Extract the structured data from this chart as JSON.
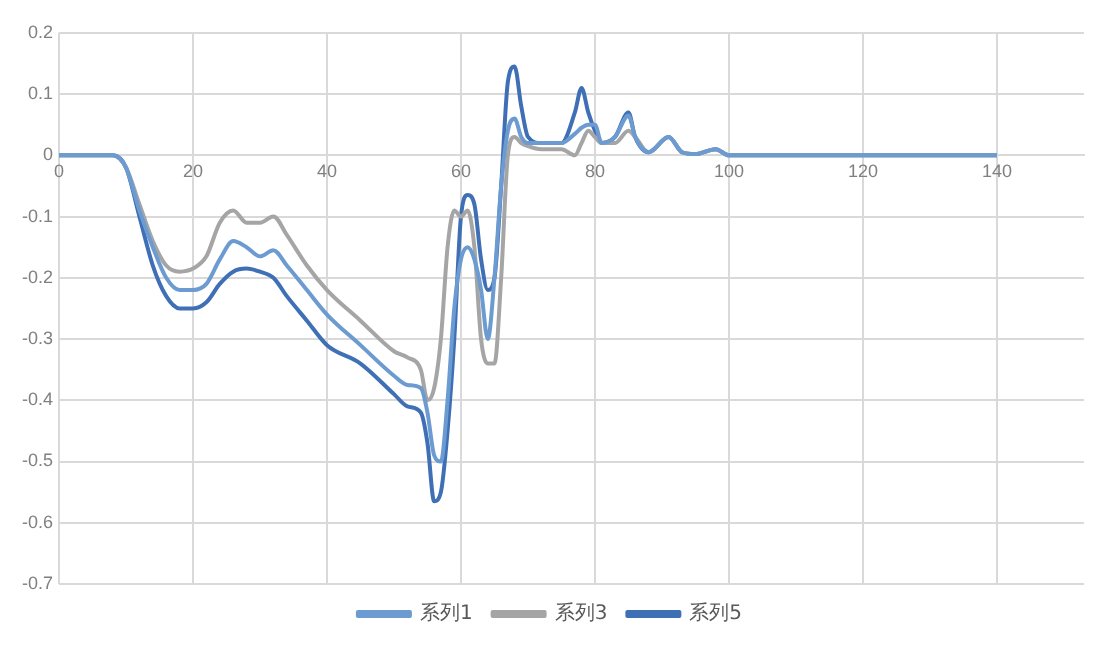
{
  "chart_data": {
    "type": "line",
    "x": [
      0,
      8,
      10,
      12,
      14,
      16,
      18,
      20,
      22,
      24,
      26,
      28,
      30,
      32,
      34,
      37,
      40,
      45,
      50,
      52,
      54,
      55,
      56,
      57,
      58,
      59,
      60,
      61,
      62,
      63,
      64,
      65,
      66,
      67,
      68,
      69,
      70,
      72,
      75,
      77,
      78,
      79,
      80,
      81,
      83,
      85,
      86,
      88,
      91,
      93,
      95,
      98,
      100,
      120,
      140
    ],
    "series": [
      {
        "name": "系列1",
        "color": "#6b9bd1",
        "values": [
          0,
          0,
          -0.02,
          -0.09,
          -0.15,
          -0.2,
          -0.22,
          -0.22,
          -0.21,
          -0.17,
          -0.14,
          -0.15,
          -0.165,
          -0.155,
          -0.18,
          -0.22,
          -0.26,
          -0.31,
          -0.36,
          -0.375,
          -0.38,
          -0.42,
          -0.49,
          -0.5,
          -0.4,
          -0.25,
          -0.17,
          -0.15,
          -0.17,
          -0.22,
          -0.3,
          -0.2,
          -0.05,
          0.04,
          0.06,
          0.03,
          0.02,
          0.02,
          0.02,
          0.035,
          0.045,
          0.05,
          0.05,
          0.02,
          0.03,
          0.065,
          0.03,
          0.005,
          0.03,
          0.005,
          0.002,
          0.01,
          0,
          0,
          0
        ]
      },
      {
        "name": "系列3",
        "color": "#a5a5a5",
        "values": [
          0,
          0,
          -0.02,
          -0.08,
          -0.14,
          -0.18,
          -0.19,
          -0.185,
          -0.165,
          -0.11,
          -0.09,
          -0.11,
          -0.11,
          -0.1,
          -0.13,
          -0.18,
          -0.22,
          -0.27,
          -0.32,
          -0.33,
          -0.35,
          -0.4,
          -0.38,
          -0.3,
          -0.15,
          -0.09,
          -0.1,
          -0.09,
          -0.15,
          -0.3,
          -0.34,
          -0.34,
          -0.2,
          0,
          0.03,
          0.02,
          0.015,
          0.01,
          0.01,
          0,
          0.02,
          0.04,
          0.03,
          0.02,
          0.02,
          0.04,
          0.03,
          0.005,
          0.03,
          0.005,
          0.002,
          0.01,
          0,
          0,
          0
        ]
      },
      {
        "name": "系列5",
        "color": "#3f6fb5",
        "values": [
          0,
          0,
          -0.02,
          -0.1,
          -0.18,
          -0.23,
          -0.25,
          -0.25,
          -0.24,
          -0.21,
          -0.19,
          -0.185,
          -0.19,
          -0.2,
          -0.23,
          -0.27,
          -0.31,
          -0.34,
          -0.39,
          -0.41,
          -0.42,
          -0.47,
          -0.565,
          -0.55,
          -0.45,
          -0.3,
          -0.1,
          -0.065,
          -0.08,
          -0.17,
          -0.22,
          -0.2,
          -0.05,
          0.12,
          0.145,
          0.08,
          0.03,
          0.02,
          0.02,
          0.07,
          0.11,
          0.07,
          0.04,
          0.02,
          0.03,
          0.07,
          0.03,
          0.005,
          0.03,
          0.005,
          0.002,
          0.01,
          0,
          0,
          0
        ]
      }
    ],
    "xlim": [
      0,
      153
    ],
    "xticks": [
      0,
      20,
      40,
      60,
      80,
      100,
      120,
      140
    ],
    "ylim": [
      -0.7,
      0.2
    ],
    "yticks": [
      -0.7,
      -0.6,
      -0.5,
      -0.4,
      -0.3,
      -0.2,
      -0.1,
      0,
      0.1,
      0.2
    ],
    "grid": true,
    "legend": "bottom",
    "marker": "none",
    "line_style": "solid"
  }
}
